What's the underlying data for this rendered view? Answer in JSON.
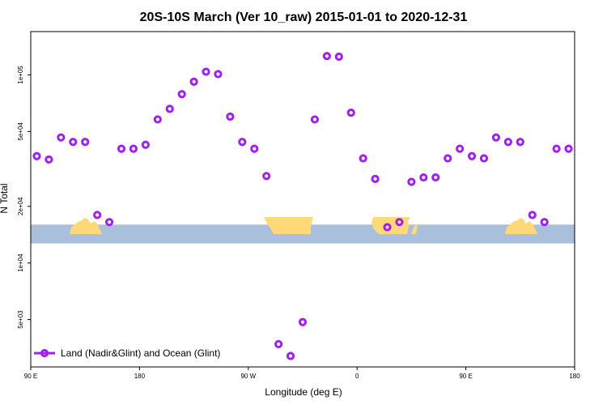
{
  "colors": {
    "marker": "#a020f0",
    "band_ocean": "#a9bfdc",
    "band_land": "#ffd978",
    "axis": "#000000"
  },
  "chart_data": {
    "type": "scatter",
    "title": "20S-10S March (Ver 10_raw)   2015-01-01 to 2020-12-31",
    "xlabel": "Longitude (deg E)",
    "ylabel": "N Total",
    "x_scale": "linear",
    "y_scale": "log",
    "xlim": [
      90,
      540
    ],
    "ylim": [
      2800,
      170000
    ],
    "x_ticks": [
      {
        "value": 90,
        "label": "90 E"
      },
      {
        "value": 180,
        "label": "180"
      },
      {
        "value": 270,
        "label": "90 W"
      },
      {
        "value": 360,
        "label": "0"
      },
      {
        "value": 450,
        "label": "90 E"
      },
      {
        "value": 540,
        "label": "180"
      }
    ],
    "y_ticks": [
      {
        "value": 5000,
        "label": "5e+03"
      },
      {
        "value": 10000,
        "label": "1e+04"
      },
      {
        "value": 20000,
        "label": "2e+04"
      },
      {
        "value": 50000,
        "label": "5e+04"
      },
      {
        "value": 100000,
        "label": "1e+05"
      }
    ],
    "legend": {
      "position": "bottom-left",
      "entries": [
        "Land (Nadir&Glint) and Ocean (Glint)"
      ]
    },
    "series": [
      {
        "name": "Land (Nadir&Glint) and Ocean (Glint)",
        "x": [
          95,
          105,
          115,
          125,
          135,
          145,
          155,
          165,
          175,
          185,
          195,
          205,
          215,
          225,
          235,
          245,
          255,
          265,
          275,
          285,
          295,
          305,
          315,
          325,
          335,
          345,
          355,
          365,
          375,
          385,
          395,
          405,
          415,
          425,
          435,
          445,
          455,
          465,
          475,
          485,
          495,
          505,
          515,
          525,
          535
        ],
        "y": [
          37000,
          35500,
          46500,
          44000,
          44000,
          18000,
          16500,
          40500,
          40500,
          42500,
          58000,
          66000,
          79000,
          92000,
          104000,
          101000,
          60000,
          44000,
          40500,
          29000,
          3700,
          3200,
          4850,
          58000,
          126000,
          125000,
          63000,
          36000,
          28000,
          15500,
          16500,
          27000,
          28500,
          28500,
          36000,
          40500,
          37000,
          36000,
          46500,
          44000,
          44000,
          18000,
          16500,
          40500,
          40500
        ]
      }
    ],
    "background_band": {
      "y_range": [
        12700,
        16000
      ],
      "description_label": ""
    },
    "grid": false
  }
}
